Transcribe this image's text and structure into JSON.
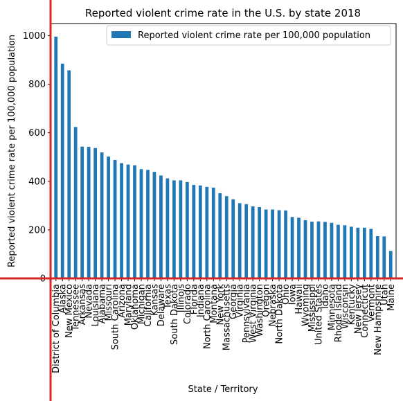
{
  "chart_data": {
    "type": "bar",
    "title": "Reported violent crime rate in the U.S. by state 2018",
    "xlabel": "State / Territory",
    "ylabel": "Reported violent crime rate per 100,000 population",
    "legend": {
      "label": "Reported violent crime rate per 100,000 population",
      "placement": "top-right"
    },
    "ylim": [
      0,
      1050
    ],
    "yticks": [
      0,
      200,
      400,
      600,
      800,
      1000
    ],
    "bar_color": "#1f77b4",
    "crosshair_color": "#d62728",
    "categories": [
      "District of Columbia",
      "Alaska",
      "New Mexico",
      "Tennessee",
      "Arkansas",
      "Nevada",
      "Louisiana",
      "Alabama",
      "Missouri",
      "South Carolina",
      "Arizona",
      "Maryland",
      "Oklahoma",
      "Michigan",
      "California",
      "Kansas",
      "Delaware",
      "Texas",
      "South Dakota",
      "Illinois",
      "Colorado",
      "Florida",
      "Indiana",
      "North Carolina",
      "Montana",
      "New York",
      "Massachusetts",
      "Georgia",
      "Virginia",
      "Pennsylvania",
      "West Virginia",
      "Washington",
      "Oregon",
      "Nebraska",
      "North Dakota",
      "Ohio",
      "Iowa",
      "Hawaii",
      "Wyoming",
      "Mississippi",
      "United States",
      "Idaho",
      "Minnesota",
      "Rhode Island",
      "Wisconsin",
      "Kentucky",
      "New Jersey",
      "Connecticut",
      "Vermont",
      "New Hampshire",
      "Utah",
      "Maine"
    ],
    "values": [
      996,
      885,
      857,
      624,
      543,
      542,
      537,
      519,
      502,
      488,
      475,
      469,
      466,
      450,
      447,
      439,
      424,
      412,
      404,
      404,
      397,
      385,
      383,
      377,
      374,
      351,
      339,
      326,
      310,
      306,
      297,
      294,
      284,
      284,
      281,
      280,
      253,
      250,
      240,
      234,
      235,
      233,
      229,
      221,
      219,
      213,
      209,
      209,
      204,
      174,
      173,
      113
    ]
  }
}
